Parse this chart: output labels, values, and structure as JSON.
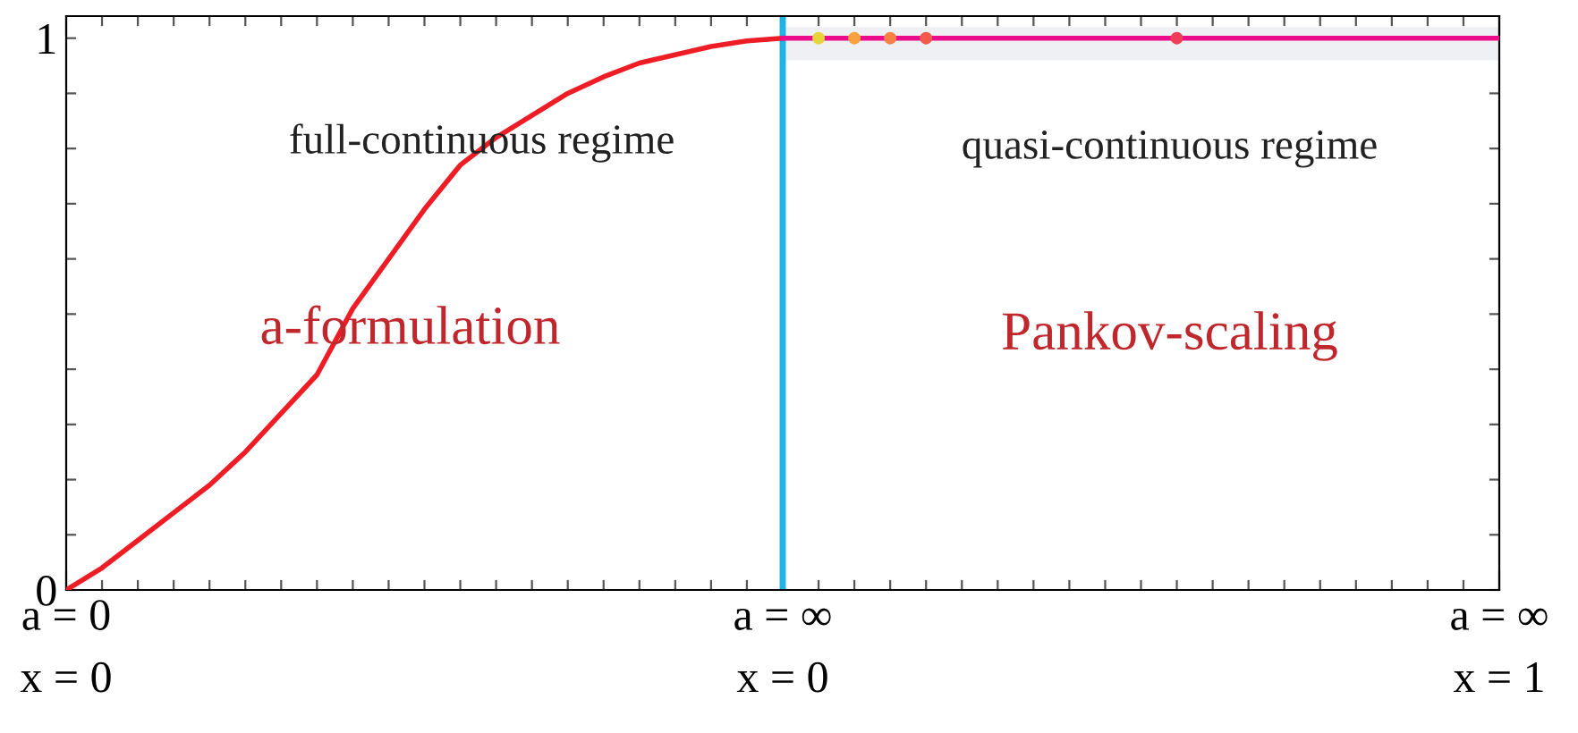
{
  "chart_data": {
    "type": "line",
    "categories": [
      "a = 0\nx = 0",
      null,
      null,
      null,
      null,
      null,
      null,
      null,
      null,
      null,
      null,
      null,
      null,
      null,
      null,
      null,
      null,
      null,
      null,
      null,
      "a = ∞\nx = 0",
      null,
      null,
      null,
      null,
      null,
      null,
      null,
      null,
      null,
      null,
      null,
      null,
      null,
      null,
      null,
      null,
      null,
      null,
      null,
      "a = ∞\nx = 1"
    ],
    "series": [
      {
        "color": "#ee1c25",
        "values": [
          0,
          0.04,
          0.09,
          0.14,
          0.19,
          0.25,
          0.32,
          0.39,
          0.51,
          0.6,
          0.69,
          0.77,
          0.82,
          0.86,
          0.9,
          0.93,
          0.955,
          0.97,
          0.985,
          0.995,
          1,
          null,
          null,
          null,
          null,
          null,
          null,
          null,
          null,
          null,
          null,
          null,
          null,
          null,
          null,
          null,
          null,
          null,
          null,
          null,
          null
        ]
      },
      {
        "color": "#ec0c8c",
        "values": [
          null,
          null,
          null,
          null,
          null,
          null,
          null,
          null,
          null,
          null,
          null,
          null,
          null,
          null,
          null,
          null,
          null,
          null,
          null,
          null,
          1,
          1,
          1,
          1,
          1,
          1,
          1,
          1,
          1,
          1,
          1,
          1,
          1,
          1,
          1,
          1,
          1,
          1,
          1,
          1,
          1
        ]
      },
      {
        "type": "scatter",
        "marker": "circle",
        "values": [
          null,
          null,
          null,
          null,
          null,
          null,
          null,
          null,
          null,
          null,
          null,
          null,
          null,
          null,
          null,
          null,
          null,
          null,
          null,
          null,
          null,
          1,
          1,
          1,
          1,
          null,
          null,
          null,
          null,
          null,
          null,
          1,
          null,
          null,
          null,
          null,
          null,
          null,
          null,
          null,
          null
        ],
        "colors": [
          null,
          null,
          null,
          null,
          null,
          null,
          null,
          null,
          null,
          null,
          null,
          null,
          null,
          null,
          null,
          null,
          null,
          null,
          null,
          null,
          null,
          "#e8d43a",
          "#f7a23e",
          "#f78044",
          "#f25a4c",
          null,
          null,
          null,
          null,
          null,
          null,
          "#ee3e5a",
          null,
          null,
          null,
          null,
          null,
          null,
          null,
          null,
          null
        ]
      }
    ],
    "ylim": [
      0,
      1.04
    ],
    "yticks": [
      0,
      {
        "value": 0.1,
        "label": null
      },
      {
        "value": 0.2,
        "label": null
      },
      {
        "value": 0.3,
        "label": null
      },
      {
        "value": 0.4,
        "label": null
      },
      {
        "value": 0.5,
        "label": null
      },
      {
        "value": 0.6,
        "label": null
      },
      {
        "value": 0.7,
        "label": null
      },
      {
        "value": 0.8,
        "label": null
      },
      {
        "value": 0.9,
        "label": null
      },
      1
    ],
    "ref_lines": [
      {
        "axis": "x",
        "value": "a = ∞\nx = 0",
        "color": "#1eb4e6"
      }
    ],
    "bands": [
      {
        "axis": "y",
        "from": 0.96,
        "to": 1.02,
        "color": "#eef0f3"
      }
    ],
    "annotations": [
      "full-continuous regime",
      "quasi-continuous regime",
      "a-formulation",
      "Pankov-scaling"
    ],
    "grid": false,
    "legend": false
  }
}
